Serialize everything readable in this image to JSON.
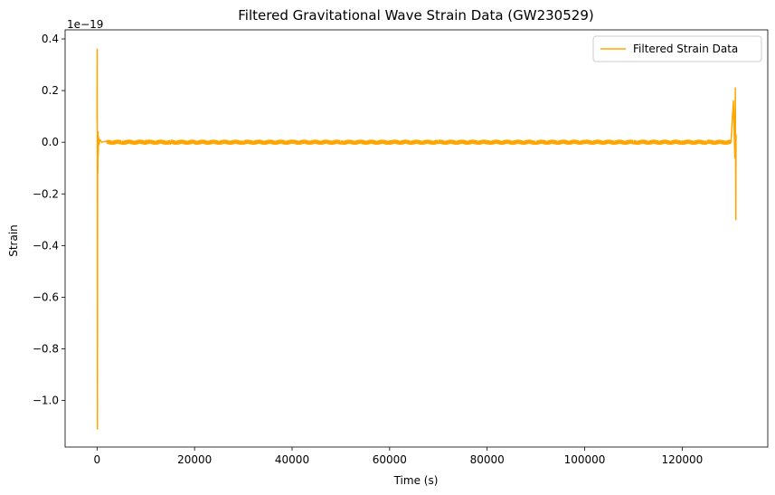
{
  "chart_data": {
    "type": "line",
    "title": "Filtered Gravitational Wave Strain Data (GW230529)",
    "xlabel": "Time (s)",
    "ylabel": "Strain",
    "y_offset_text": "1e−19",
    "xlim": [
      -6550,
      137550
    ],
    "ylim": [
      -1.18,
      0.435
    ],
    "y_scale_factor": "1e-19",
    "x_ticks": [
      0,
      20000,
      40000,
      60000,
      80000,
      100000,
      120000
    ],
    "x_tick_labels": [
      "0",
      "20000",
      "40000",
      "60000",
      "80000",
      "100000",
      "120000"
    ],
    "y_ticks": [
      0.4,
      0.2,
      0.0,
      -0.2,
      -0.4,
      -0.6,
      -0.8,
      -1.0
    ],
    "y_tick_labels": [
      "0.4",
      "0.2",
      "0.0",
      "−0.2",
      "−0.4",
      "−0.6",
      "−0.8",
      "−1.0"
    ],
    "grid": false,
    "legend_position": "top-right",
    "series": [
      {
        "name": "Filtered Strain Data",
        "color": "#ffa500",
        "x": [
          0,
          40,
          80,
          120,
          160,
          200,
          240,
          300,
          400,
          600,
          1000,
          2000,
          5000,
          10000,
          15000,
          20000,
          30000,
          40000,
          50000,
          60000,
          70000,
          80000,
          90000,
          100000,
          110000,
          120000,
          125000,
          128000,
          130000,
          130500,
          130800,
          130900,
          131000,
          131050
        ],
        "y": [
          0.08,
          0.36,
          -1.11,
          0.0,
          -0.12,
          0.04,
          -0.05,
          0.02,
          -0.01,
          0.01,
          0.0,
          0.005,
          -0.005,
          0.008,
          -0.008,
          0.005,
          -0.006,
          0.007,
          -0.005,
          0.006,
          -0.004,
          0.005,
          -0.006,
          0.005,
          -0.005,
          0.006,
          -0.006,
          0.005,
          0.0,
          0.16,
          -0.06,
          0.21,
          -0.3,
          0.03
        ]
      }
    ]
  }
}
